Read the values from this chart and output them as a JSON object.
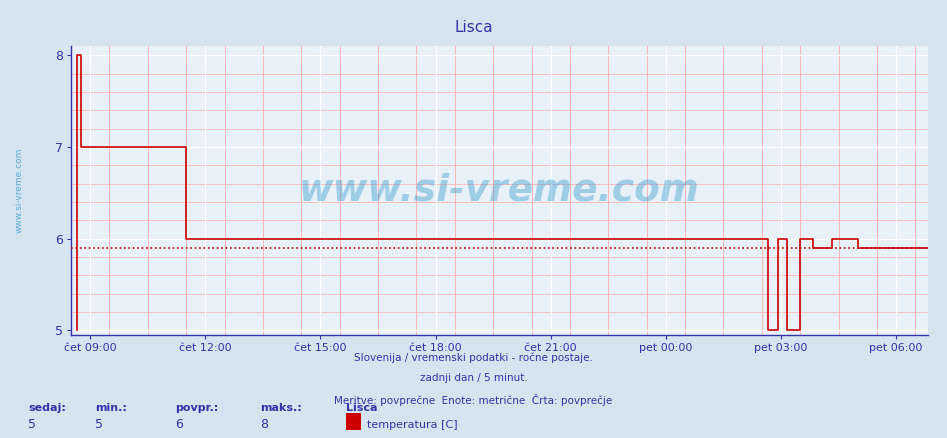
{
  "title": "Lisca",
  "bg_color": "#d6e4f0",
  "plot_bg_color": "#e8f0f8",
  "line_color": "#cc0000",
  "avg_line_color": "#cc0000",
  "grid_color_major": "#ffffff",
  "grid_color_minor": "#ffaaaa",
  "axis_color": "#3333aa",
  "text_color": "#3333aa",
  "ylim": [
    4.95,
    8.1
  ],
  "yticks": [
    5,
    6,
    7,
    8
  ],
  "xtick_labels": [
    "čet 09:00",
    "čet 12:00",
    "čet 15:00",
    "čet 18:00",
    "čet 21:00",
    "pet 00:00",
    "pet 03:00",
    "pet 06:00"
  ],
  "xtick_positions": [
    0,
    180,
    360,
    540,
    720,
    900,
    1080,
    1260
  ],
  "x_min": -30,
  "x_max": 1310,
  "avg_value": 5.9,
  "subtitle1": "Slovenija / vremenski podatki - ročne postaje.",
  "subtitle2": "zadnji dan / 5 minut.",
  "subtitle3": "Meritve: povprečne  Enote: metrične  Črta: povprečje",
  "stat_label1": "sedaj:",
  "stat_label2": "min.:",
  "stat_label3": "povpr.:",
  "stat_label4": "maks.:",
  "stat_val1": "5",
  "stat_val2": "5",
  "stat_val3": "6",
  "stat_val4": "8",
  "legend_title": "Lisca",
  "legend_label": "temperatura [C]",
  "watermark_text": "www.si-vreme.com",
  "watermark_color": "#3399cc",
  "watermark_alpha": 0.4,
  "ylabel_text": "www.si-vreme.com",
  "ylabel_color": "#3399cc",
  "raw_x": [
    -20,
    -20,
    -15,
    -15,
    150,
    150,
    1060,
    1060,
    1075,
    1075,
    1090,
    1090,
    1110,
    1110,
    1130,
    1130,
    1160,
    1160,
    1200,
    1200,
    1310
  ],
  "raw_y": [
    5.0,
    8.0,
    8.0,
    7.0,
    7.0,
    6.0,
    6.0,
    5.0,
    5.0,
    6.0,
    6.0,
    5.0,
    5.0,
    6.0,
    6.0,
    5.9,
    5.9,
    6.0,
    6.0,
    5.9,
    5.9
  ]
}
